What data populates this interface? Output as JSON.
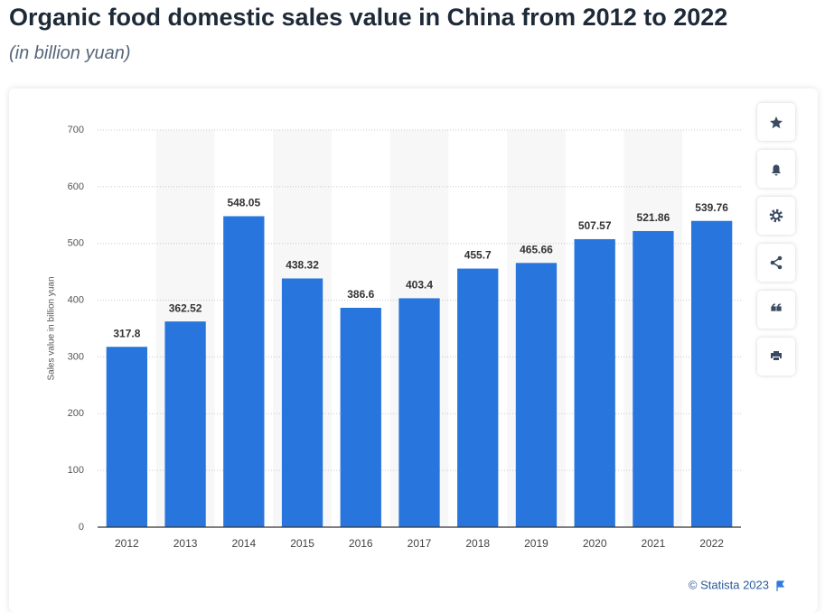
{
  "chart_data": {
    "type": "bar",
    "title": "Organic food domestic sales value in China from 2012 to 2022",
    "subtitle": "(in billion yuan)",
    "y_label": "Sales value in billion yuan",
    "credit": "© Statista 2023",
    "categories": [
      "2012",
      "2013",
      "2014",
      "2015",
      "2016",
      "2017",
      "2018",
      "2019",
      "2020",
      "2021",
      "2022"
    ],
    "values": [
      317.8,
      362.52,
      548.05,
      438.32,
      386.6,
      403.4,
      455.7,
      465.66,
      507.57,
      521.86,
      539.76
    ],
    "color": "#2876dd",
    "ylim": [
      0,
      700
    ],
    "yticks": [
      0,
      100,
      200,
      300,
      400,
      500,
      600,
      700
    ],
    "grid": true,
    "alternating_bands": true
  }
}
